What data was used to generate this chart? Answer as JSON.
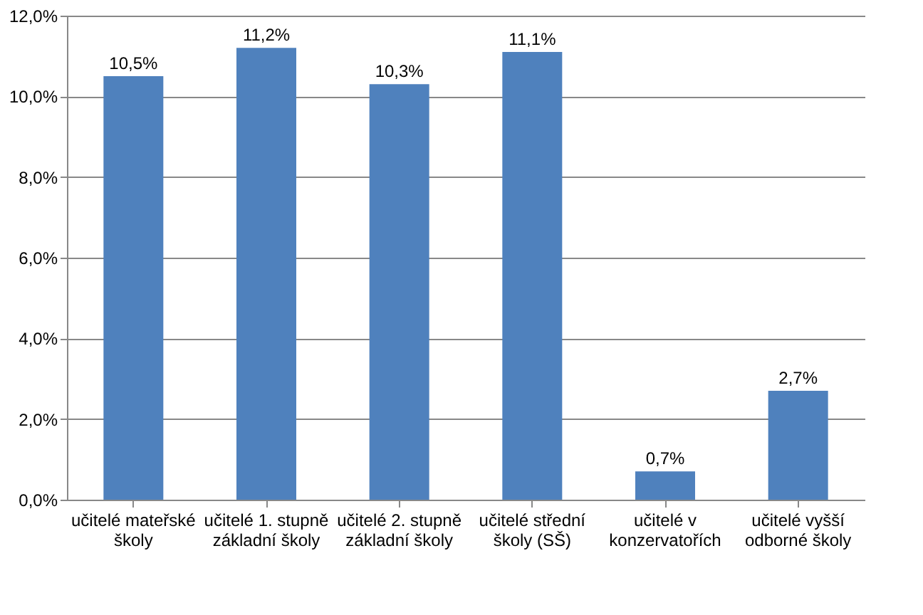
{
  "chart_data": {
    "type": "bar",
    "categories": [
      "učitelé mateřské školy",
      "učitelé 1. stupně základní školy",
      "učitelé 2. stupně základní školy",
      "učitelé střední školy (SŠ)",
      "učitelé v konzervatořích",
      "učitelé vyšší odborné školy"
    ],
    "values": [
      10.5,
      11.2,
      10.3,
      11.1,
      0.7,
      2.7
    ],
    "value_labels": [
      "10,5%",
      "11,2%",
      "10,3%",
      "11,1%",
      "0,7%",
      "2,7%"
    ],
    "color": "#4f81bd",
    "ylim": [
      0,
      12
    ],
    "yticks": [
      {
        "value": 0,
        "label": "0,0%"
      },
      {
        "value": 2,
        "label": "2,0%"
      },
      {
        "value": 4,
        "label": "4,0%"
      },
      {
        "value": 6,
        "label": "6,0%"
      },
      {
        "value": 8,
        "label": "8,0%"
      },
      {
        "value": 10,
        "label": "10,0%"
      },
      {
        "value": 12,
        "label": "12,0%"
      }
    ],
    "grid": "y"
  }
}
